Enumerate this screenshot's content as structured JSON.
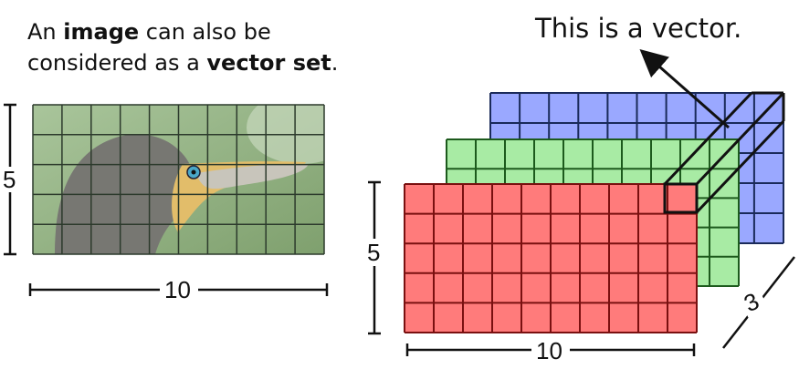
{
  "caption": {
    "line1_pre": "An ",
    "line1_bold": "image",
    "line1_post": " can also be",
    "line2_pre": "considered as a ",
    "line2_bold": "vector set",
    "line2_post": "."
  },
  "vector_label": "This is a vector.",
  "image_grid": {
    "cols": 10,
    "rows": 5,
    "height_label": "5",
    "width_label": "10"
  },
  "tensor": {
    "cols": 10,
    "rows": 5,
    "depth": 3,
    "height_label": "5",
    "width_label": "10",
    "depth_label": "3",
    "channels": [
      {
        "name": "red",
        "color": "#ff7b7b"
      },
      {
        "name": "green",
        "color": "#a8eba4"
      },
      {
        "name": "blue",
        "color": "#9aa8ff"
      }
    ]
  },
  "bird_colors": {
    "background": "#8fb27f",
    "body": "#7c7c78",
    "beak": "#e5c275",
    "eye": "#44aacc"
  }
}
